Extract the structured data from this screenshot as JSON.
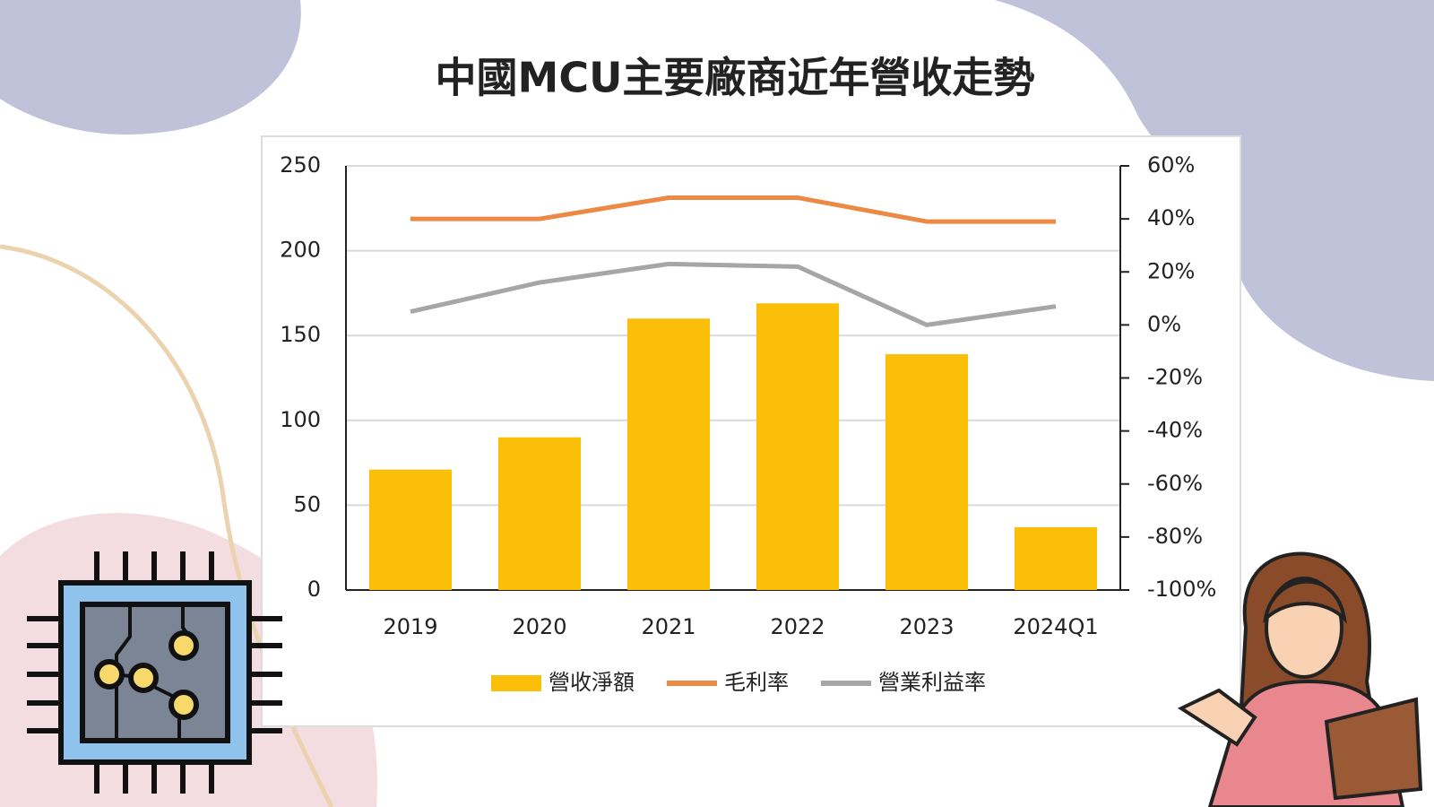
{
  "chart_data": {
    "type": "combo",
    "title": "中國MCU主要廠商近年營收走勢",
    "categories": [
      "2019",
      "2020",
      "2021",
      "2022",
      "2023",
      "2024Q1"
    ],
    "series": [
      {
        "name": "營收淨額",
        "type": "bar",
        "color": "#fbbf0a",
        "values": [
          71,
          90,
          160,
          169,
          139,
          37
        ]
      },
      {
        "name": "毛利率",
        "type": "line",
        "axis": "y2",
        "color": "#ec8a45",
        "values": [
          40,
          40,
          48,
          48,
          39,
          39
        ]
      },
      {
        "name": "營業利益率",
        "type": "line",
        "axis": "y2",
        "color": "#a6a6a6",
        "values": [
          5,
          16,
          23,
          22,
          0,
          7
        ]
      }
    ],
    "ylim": [
      0,
      250
    ],
    "yticks": [
      0,
      50,
      100,
      150,
      200,
      250
    ],
    "y2lim": [
      -100,
      60
    ],
    "y2ticks": [
      {
        "value": -100,
        "label": "-100%"
      },
      {
        "value": -80,
        "label": "-80%"
      },
      {
        "value": -60,
        "label": "-60%"
      },
      {
        "value": -40,
        "label": "-40%"
      },
      {
        "value": -20,
        "label": "-20%"
      },
      {
        "value": 0,
        "label": "0%"
      },
      {
        "value": 20,
        "label": "20%"
      },
      {
        "value": 40,
        "label": "40%"
      },
      {
        "value": 60,
        "label": "60%"
      }
    ],
    "grid": true,
    "legend": "bottom"
  }
}
